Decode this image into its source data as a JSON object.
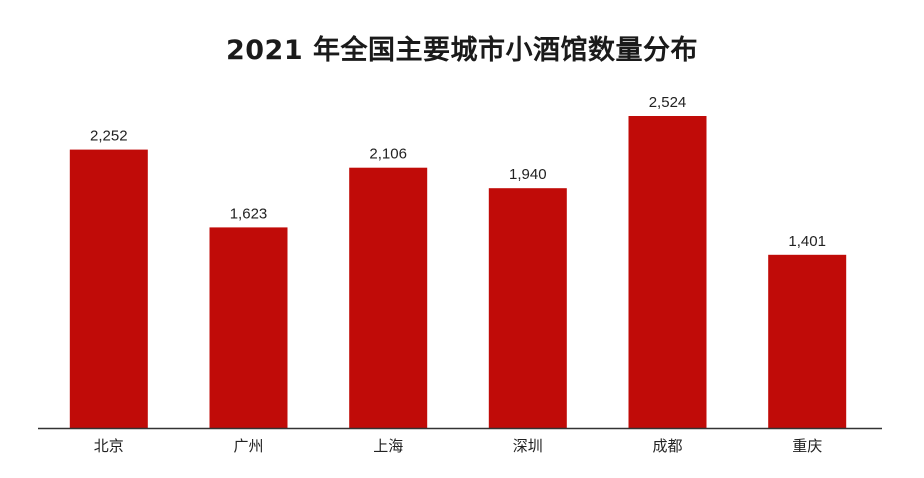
{
  "colors": {
    "bar": "#c00b08",
    "axis": "#333333",
    "text": "#222222"
  },
  "chart_data": {
    "type": "bar",
    "title": "2021 年全国主要城市小酒馆数量分布",
    "xlabel": "",
    "ylabel": "",
    "categories": [
      "北京",
      "广州",
      "上海",
      "深圳",
      "成都",
      "重庆"
    ],
    "values": [
      2252,
      1623,
      2106,
      1940,
      2524,
      1401
    ],
    "value_labels": [
      "2,252",
      "1,623",
      "2,106",
      "1,940",
      "2,524",
      "1,401"
    ],
    "ylim": [
      0,
      2800
    ],
    "grid": false,
    "legend": "none"
  }
}
